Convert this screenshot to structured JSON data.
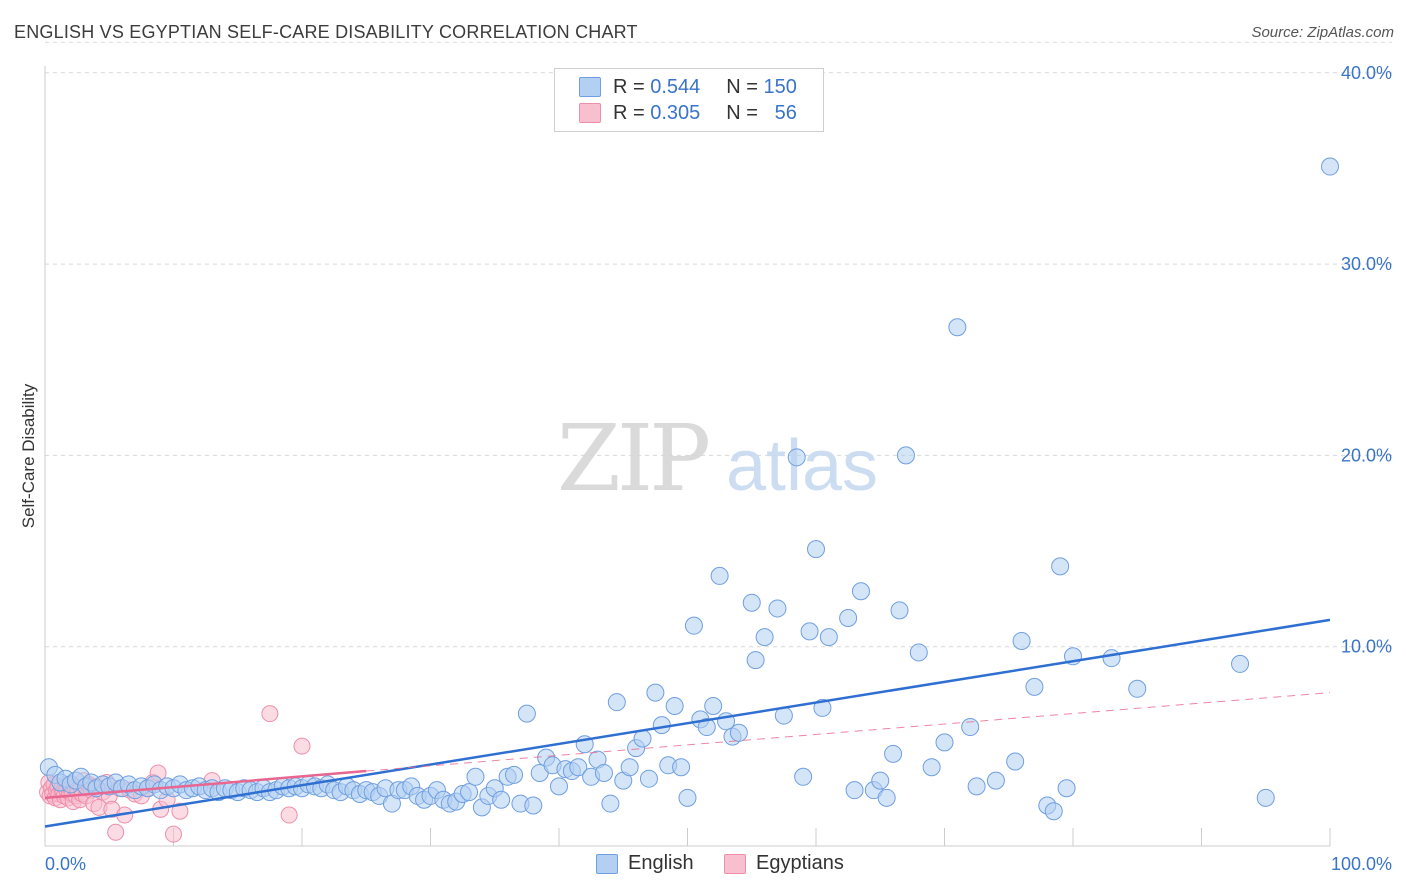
{
  "title": "ENGLISH VS EGYPTIAN SELF-CARE DISABILITY CORRELATION CHART",
  "source": "Source: ZipAtlas.com",
  "watermark": {
    "zip": "ZIP",
    "atlas": "atlas"
  },
  "legend": {
    "english": {
      "r_label": "R =",
      "r_value": "0.544",
      "n_label": "N =",
      "n_value": "150"
    },
    "egyptians": {
      "r_label": "R =",
      "r_value": "0.305",
      "n_label": "N =",
      "n_value": "56"
    }
  },
  "bottom_legend": {
    "english": "English",
    "egyptians": "Egyptians"
  },
  "colors": {
    "english_fill": "#b3cff2",
    "english_stroke": "#6f9fe0",
    "english_line": "#2e6fd1",
    "egypt_fill": "#f8bfcf",
    "egypt_stroke": "#ee8eaa",
    "egypt_line": "#e8668f",
    "axis_text": "#3a74c9",
    "grid": "#d8d8d8"
  },
  "chart_data": {
    "type": "scatter",
    "title": "ENGLISH VS EGYPTIAN SELF-CARE DISABILITY CORRELATION CHART",
    "xlabel": "",
    "ylabel": "Self-Care Disability",
    "xlim": [
      0,
      100
    ],
    "ylim": [
      0,
      42
    ],
    "x_tick_labels": [
      "0.0%",
      "100.0%"
    ],
    "y_ticks": [
      10,
      20,
      30,
      40
    ],
    "y_tick_labels": [
      "10.0%",
      "20.0%",
      "30.0%",
      "40.0%"
    ],
    "grid": true,
    "series": [
      {
        "name": "English",
        "r": 0.544,
        "n": 150,
        "trend": {
          "x": [
            0,
            100
          ],
          "y": [
            0.6,
            11.4
          ],
          "style": "solid"
        },
        "points": [
          [
            0.3,
            3.7
          ],
          [
            0.8,
            3.3
          ],
          [
            1.2,
            2.9
          ],
          [
            1.6,
            3.1
          ],
          [
            2.0,
            2.8
          ],
          [
            2.4,
            3.0
          ],
          [
            2.8,
            3.2
          ],
          [
            3.2,
            2.7
          ],
          [
            3.6,
            2.9
          ],
          [
            4.0,
            2.6
          ],
          [
            4.5,
            2.8
          ],
          [
            5.0,
            2.7
          ],
          [
            5.5,
            2.9
          ],
          [
            6.0,
            2.6
          ],
          [
            6.5,
            2.8
          ],
          [
            7.0,
            2.5
          ],
          [
            7.5,
            2.7
          ],
          [
            8.0,
            2.6
          ],
          [
            8.5,
            2.8
          ],
          [
            9.0,
            2.5
          ],
          [
            9.5,
            2.7
          ],
          [
            10.0,
            2.6
          ],
          [
            10.5,
            2.8
          ],
          [
            11.0,
            2.5
          ],
          [
            11.5,
            2.6
          ],
          [
            12.0,
            2.7
          ],
          [
            12.5,
            2.5
          ],
          [
            13.0,
            2.6
          ],
          [
            13.5,
            2.4
          ],
          [
            14.0,
            2.6
          ],
          [
            14.5,
            2.5
          ],
          [
            15.0,
            2.4
          ],
          [
            15.5,
            2.6
          ],
          [
            16.0,
            2.5
          ],
          [
            16.5,
            2.4
          ],
          [
            17.0,
            2.6
          ],
          [
            17.5,
            2.4
          ],
          [
            18.0,
            2.5
          ],
          [
            18.5,
            2.7
          ],
          [
            19.0,
            2.6
          ],
          [
            19.5,
            2.7
          ],
          [
            20.0,
            2.6
          ],
          [
            20.5,
            2.8
          ],
          [
            21.0,
            2.7
          ],
          [
            21.5,
            2.6
          ],
          [
            22.0,
            2.8
          ],
          [
            22.5,
            2.5
          ],
          [
            23.0,
            2.4
          ],
          [
            23.5,
            2.7
          ],
          [
            24.0,
            2.5
          ],
          [
            24.5,
            2.3
          ],
          [
            25.0,
            2.5
          ],
          [
            25.5,
            2.4
          ],
          [
            26.0,
            2.2
          ],
          [
            26.5,
            2.6
          ],
          [
            27.0,
            1.8
          ],
          [
            27.5,
            2.5
          ],
          [
            28.0,
            2.5
          ],
          [
            28.5,
            2.7
          ],
          [
            29.0,
            2.2
          ],
          [
            29.5,
            2.0
          ],
          [
            30.0,
            2.2
          ],
          [
            30.5,
            2.5
          ],
          [
            31.0,
            2.0
          ],
          [
            31.5,
            1.8
          ],
          [
            32.0,
            1.9
          ],
          [
            32.5,
            2.3
          ],
          [
            33.0,
            2.4
          ],
          [
            33.5,
            3.2
          ],
          [
            34.0,
            1.6
          ],
          [
            34.5,
            2.2
          ],
          [
            35.0,
            2.6
          ],
          [
            35.5,
            2.0
          ],
          [
            36.0,
            3.2
          ],
          [
            36.5,
            3.3
          ],
          [
            37.0,
            1.8
          ],
          [
            37.5,
            6.5
          ],
          [
            38.0,
            1.7
          ],
          [
            38.5,
            3.4
          ],
          [
            39.0,
            4.2
          ],
          [
            39.5,
            3.8
          ],
          [
            40.0,
            2.7
          ],
          [
            40.5,
            3.6
          ],
          [
            41.0,
            3.5
          ],
          [
            41.5,
            3.7
          ],
          [
            42.0,
            4.9
          ],
          [
            42.5,
            3.2
          ],
          [
            43.0,
            4.1
          ],
          [
            43.5,
            3.4
          ],
          [
            44.0,
            1.8
          ],
          [
            44.5,
            7.1
          ],
          [
            45.0,
            3.0
          ],
          [
            45.5,
            3.7
          ],
          [
            46.0,
            4.7
          ],
          [
            46.5,
            5.2
          ],
          [
            47.0,
            3.1
          ],
          [
            47.5,
            7.6
          ],
          [
            48.0,
            5.9
          ],
          [
            48.5,
            3.8
          ],
          [
            49.0,
            6.9
          ],
          [
            49.5,
            3.7
          ],
          [
            50.0,
            2.1
          ],
          [
            50.5,
            11.1
          ],
          [
            51.0,
            6.2
          ],
          [
            51.5,
            5.8
          ],
          [
            52.0,
            6.9
          ],
          [
            52.5,
            13.7
          ],
          [
            53.0,
            6.1
          ],
          [
            53.5,
            5.3
          ],
          [
            54.0,
            5.5
          ],
          [
            55.0,
            12.3
          ],
          [
            55.3,
            9.3
          ],
          [
            56.0,
            10.5
          ],
          [
            57.0,
            12.0
          ],
          [
            57.5,
            6.4
          ],
          [
            58.5,
            19.9
          ],
          [
            59.0,
            3.2
          ],
          [
            59.5,
            10.8
          ],
          [
            60.0,
            15.1
          ],
          [
            60.5,
            6.8
          ],
          [
            61.0,
            10.5
          ],
          [
            62.5,
            11.5
          ],
          [
            63.0,
            2.5
          ],
          [
            63.5,
            12.9
          ],
          [
            64.5,
            2.5
          ],
          [
            65.0,
            3.0
          ],
          [
            65.5,
            2.1
          ],
          [
            66.0,
            4.4
          ],
          [
            66.5,
            11.9
          ],
          [
            67.0,
            20.0
          ],
          [
            68.0,
            9.7
          ],
          [
            69.0,
            3.7
          ],
          [
            70.0,
            5.0
          ],
          [
            71.0,
            26.7
          ],
          [
            72.0,
            5.8
          ],
          [
            72.5,
            2.7
          ],
          [
            74.0,
            3.0
          ],
          [
            75.5,
            4.0
          ],
          [
            76.0,
            10.3
          ],
          [
            77.0,
            7.9
          ],
          [
            78.0,
            1.7
          ],
          [
            78.5,
            1.4
          ],
          [
            79.0,
            14.2
          ],
          [
            79.5,
            2.6
          ],
          [
            80.0,
            9.5
          ],
          [
            83.0,
            9.4
          ],
          [
            85.0,
            7.8
          ],
          [
            93.0,
            9.1
          ],
          [
            95.0,
            2.1
          ],
          [
            100.0,
            35.1
          ]
        ]
      },
      {
        "name": "Egyptians",
        "r": 0.305,
        "n": 56,
        "trend": {
          "x": [
            0,
            25
          ],
          "y": [
            2.1,
            3.5
          ],
          "style": "solid",
          "extended": {
            "x": [
              25,
              100
            ],
            "y": [
              3.5,
              7.6
            ],
            "style": "dashed"
          }
        },
        "points": [
          [
            0.2,
            2.4
          ],
          [
            0.3,
            2.9
          ],
          [
            0.4,
            2.2
          ],
          [
            0.5,
            2.6
          ],
          [
            0.6,
            2.3
          ],
          [
            0.7,
            2.8
          ],
          [
            0.8,
            2.1
          ],
          [
            0.9,
            2.5
          ],
          [
            1.0,
            2.7
          ],
          [
            1.1,
            2.3
          ],
          [
            1.2,
            2.0
          ],
          [
            1.3,
            2.6
          ],
          [
            1.4,
            2.4
          ],
          [
            1.5,
            2.2
          ],
          [
            1.6,
            2.8
          ],
          [
            1.7,
            2.5
          ],
          [
            1.8,
            2.1
          ],
          [
            1.9,
            2.4
          ],
          [
            2.0,
            2.6
          ],
          [
            2.1,
            2.3
          ],
          [
            2.2,
            1.9
          ],
          [
            2.3,
            2.7
          ],
          [
            2.4,
            2.2
          ],
          [
            2.5,
            2.5
          ],
          [
            2.6,
            2.4
          ],
          [
            2.7,
            2.0
          ],
          [
            2.8,
            2.6
          ],
          [
            2.9,
            2.3
          ],
          [
            3.0,
            3.0
          ],
          [
            3.2,
            2.2
          ],
          [
            3.4,
            2.8
          ],
          [
            3.6,
            2.5
          ],
          [
            3.8,
            1.8
          ],
          [
            4.0,
            2.7
          ],
          [
            4.2,
            1.6
          ],
          [
            4.5,
            2.4
          ],
          [
            4.8,
            2.9
          ],
          [
            5.0,
            2.2
          ],
          [
            5.2,
            1.5
          ],
          [
            5.5,
            0.3
          ],
          [
            5.8,
            2.6
          ],
          [
            6.2,
            1.2
          ],
          [
            6.6,
            2.5
          ],
          [
            7.0,
            2.3
          ],
          [
            7.5,
            2.2
          ],
          [
            8.0,
            2.6
          ],
          [
            8.4,
            2.9
          ],
          [
            8.8,
            3.4
          ],
          [
            9.0,
            1.5
          ],
          [
            9.5,
            2.0
          ],
          [
            10.0,
            0.2
          ],
          [
            10.5,
            1.4
          ],
          [
            13.0,
            3.0
          ],
          [
            17.5,
            6.5
          ],
          [
            19.0,
            1.2
          ],
          [
            20.0,
            4.8
          ]
        ]
      }
    ]
  }
}
